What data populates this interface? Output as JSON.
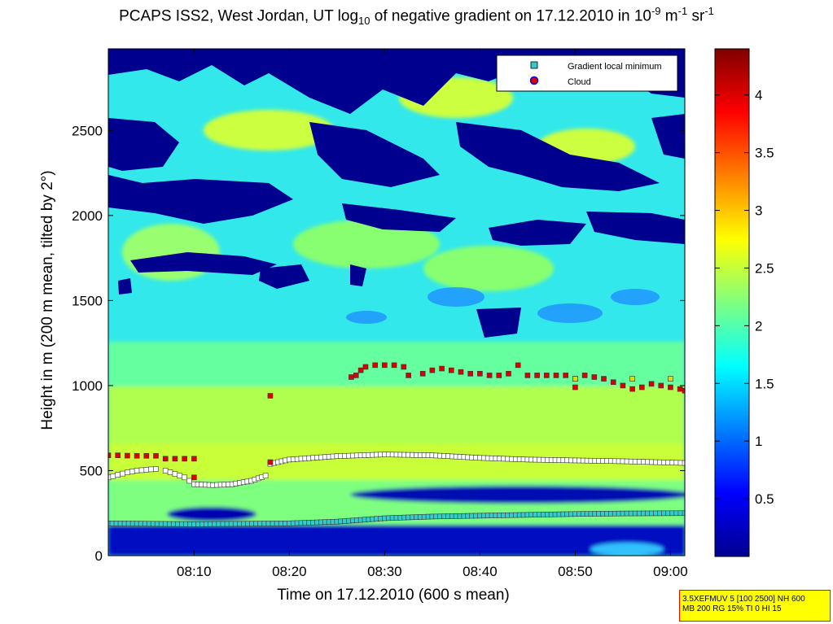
{
  "chart_data": {
    "type": "heatmap",
    "title": {
      "prefix": "PCAPS ISS2, West Jordan, UT log",
      "sub": "10",
      "middle": " of negative gradient on 17.12.2010 in 10",
      "sup1": "-9",
      "unit1": " m",
      "sup2": "-1",
      "unit2": " sr",
      "sup3": "-1"
    },
    "xlabel": "Time on 17.12.2010 (600 s mean)",
    "ylabel": "Height in m (200 m mean, tilted by 2°)",
    "x_ticks": [
      "08:10",
      "08:20",
      "08:30",
      "08:40",
      "08:50",
      "09:00"
    ],
    "x_tick_minutes": [
      10,
      20,
      30,
      40,
      50,
      60
    ],
    "xlim_minutes": [
      1,
      61.5
    ],
    "y_ticks": [
      "0",
      "500",
      "1000",
      "1500",
      "2000",
      "2500"
    ],
    "y_tick_values": [
      0,
      500,
      1000,
      1500,
      2000,
      2500
    ],
    "ylim": [
      0,
      2980
    ],
    "colorbar": {
      "ticks": [
        "0.5",
        "1",
        "1.5",
        "2",
        "2.5",
        "3",
        "3.5",
        "4"
      ],
      "tick_values": [
        0.5,
        1,
        1.5,
        2,
        2.5,
        3,
        3.5,
        4
      ],
      "range": [
        0,
        4.4
      ]
    },
    "legend": {
      "placement": "top-right",
      "entries": [
        "Gradient local minimum",
        "Cloud"
      ]
    },
    "series": [
      {
        "name": "Gradient local minimum",
        "marker": "square",
        "color": "#33cccc",
        "points": [
          [
            1,
            190
          ],
          [
            10,
            185
          ],
          [
            20,
            190
          ],
          [
            25,
            200
          ],
          [
            30,
            220
          ],
          [
            35,
            230
          ],
          [
            40,
            235
          ],
          [
            45,
            240
          ],
          [
            50,
            245
          ],
          [
            55,
            248
          ],
          [
            61.5,
            250
          ]
        ]
      },
      {
        "name": "Gradient local minimum",
        "marker": "square",
        "color": "#ffffff",
        "points": [
          [
            1,
            460
          ],
          [
            2,
            475
          ],
          [
            3,
            490
          ],
          [
            4,
            500
          ],
          [
            5,
            505
          ],
          [
            6,
            510
          ]
        ]
      },
      {
        "name": "Gradient local minimum",
        "marker": "square",
        "color": "#ffffff",
        "points": [
          [
            7,
            500
          ],
          [
            8,
            480
          ],
          [
            9,
            460
          ],
          [
            10,
            420
          ],
          [
            12,
            415
          ],
          [
            14,
            420
          ],
          [
            16,
            440
          ],
          [
            17.5,
            470
          ],
          [
            18,
            540
          ],
          [
            20,
            565
          ],
          [
            25,
            585
          ],
          [
            30,
            595
          ],
          [
            35,
            590
          ],
          [
            40,
            575
          ],
          [
            45,
            565
          ],
          [
            50,
            560
          ],
          [
            55,
            555
          ],
          [
            61.5,
            545
          ]
        ]
      },
      {
        "name": "Cloud",
        "marker": "square",
        "color": "#dd0000",
        "points": [
          [
            1,
            590
          ],
          [
            2,
            590
          ],
          [
            3,
            588
          ],
          [
            4,
            587
          ],
          [
            5,
            587
          ],
          [
            6,
            587
          ]
        ]
      },
      {
        "name": "Cloud",
        "marker": "square",
        "color": "#dd0000",
        "points": [
          [
            7,
            570
          ],
          [
            8,
            570
          ],
          [
            9,
            570
          ],
          [
            10,
            570
          ],
          [
            10,
            460
          ],
          [
            18,
            550
          ],
          [
            18,
            940
          ]
        ]
      },
      {
        "name": "Cloud",
        "marker": "square",
        "color": "#dd0000",
        "points": [
          [
            26.5,
            1050
          ],
          [
            27,
            1060
          ],
          [
            27.5,
            1090
          ],
          [
            28,
            1110
          ],
          [
            29,
            1120
          ],
          [
            30,
            1120
          ],
          [
            31,
            1120
          ],
          [
            32,
            1110
          ],
          [
            32.5,
            1060
          ],
          [
            34,
            1070
          ],
          [
            35,
            1090
          ],
          [
            36,
            1100
          ],
          [
            37,
            1090
          ],
          [
            38,
            1080
          ],
          [
            39,
            1070
          ],
          [
            40,
            1070
          ],
          [
            41,
            1060
          ],
          [
            42,
            1060
          ],
          [
            43,
            1070
          ],
          [
            44,
            1120
          ],
          [
            45,
            1060
          ],
          [
            46,
            1060
          ],
          [
            47,
            1060
          ],
          [
            48,
            1060
          ],
          [
            49,
            1060
          ],
          [
            50,
            1040
          ],
          [
            50,
            990
          ],
          [
            51,
            1060
          ],
          [
            52,
            1050
          ],
          [
            53,
            1040
          ],
          [
            54,
            1020
          ],
          [
            55,
            1000
          ],
          [
            56,
            980
          ],
          [
            57,
            990
          ],
          [
            58,
            1010
          ],
          [
            59,
            1000
          ],
          [
            60,
            990
          ],
          [
            61,
            980
          ],
          [
            61.5,
            970
          ]
        ]
      },
      {
        "name": "Cloud",
        "marker": "square",
        "color": "#dddd00",
        "points": [
          [
            50,
            1040
          ],
          [
            56,
            1040
          ],
          [
            60,
            1040
          ]
        ]
      }
    ]
  },
  "info_box": {
    "line1": "3.5XEFMUV 5 [100 2500] NH 600",
    "line2": "MB 200 RG 15% TI 0 HI 15"
  }
}
